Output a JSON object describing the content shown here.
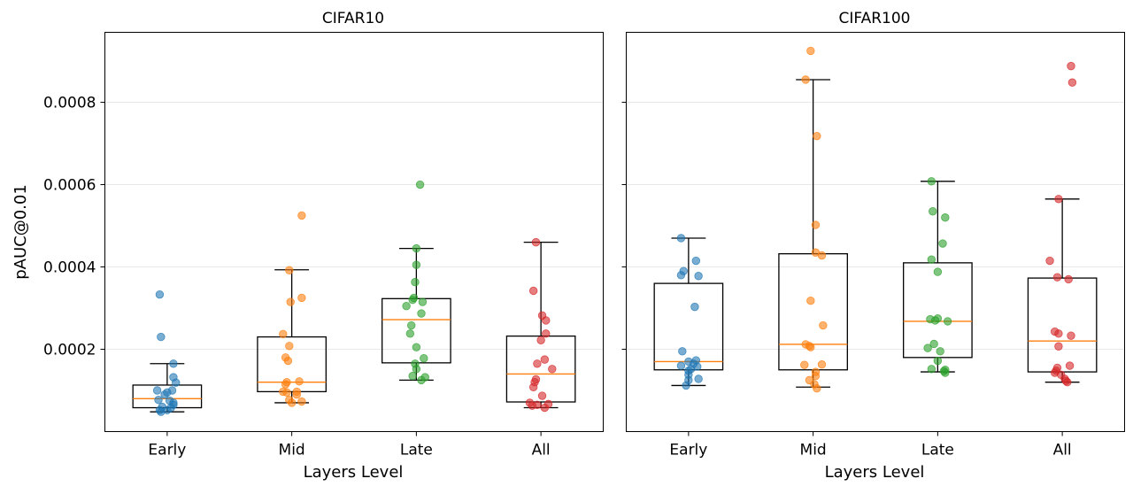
{
  "chart_data": [
    {
      "type": "box",
      "title": "CIFAR10",
      "xlabel": "Layers Level",
      "ylabel": "pAUC@0.01",
      "categories": [
        "Early",
        "Mid",
        "Late",
        "All"
      ],
      "ylim": [
        0.0,
        0.00097
      ],
      "yticks": [
        0.0002,
        0.0004,
        0.0006,
        0.0008
      ],
      "ytick_labels": [
        "0.0002",
        "0.0004",
        "0.0006",
        "0.0008"
      ],
      "grid": "horizontal",
      "colors": [
        "#1f77b4",
        "#ff7f0e",
        "#2ca02c",
        "#d62728"
      ],
      "median_color": "#ff7f0e",
      "series": [
        {
          "category": "Early",
          "box": {
            "whisker_low": 4.8e-05,
            "q1": 5.8e-05,
            "median": 8e-05,
            "q3": 0.000113,
            "whisker_high": 0.000165
          },
          "points": [
            {
              "x": -0.06,
              "y": 0.000333
            },
            {
              "x": -0.05,
              "y": 0.00023
            },
            {
              "x": 0.05,
              "y": 0.000165
            },
            {
              "x": 0.05,
              "y": 0.000132
            },
            {
              "x": 0.07,
              "y": 0.000119
            },
            {
              "x": -0.08,
              "y": 0.0001
            },
            {
              "x": 0.04,
              "y": 0.0001
            },
            {
              "x": 0.0,
              "y": 9.5e-05
            },
            {
              "x": -0.02,
              "y": 9e-05
            },
            {
              "x": -0.07,
              "y": 7.7e-05
            },
            {
              "x": 0.02,
              "y": 7.5e-05
            },
            {
              "x": 0.05,
              "y": 7e-05
            },
            {
              "x": 0.05,
              "y": 6.5e-05
            },
            {
              "x": -0.04,
              "y": 6e-05
            },
            {
              "x": 0.03,
              "y": 5.8e-05
            },
            {
              "x": -0.06,
              "y": 5.2e-05
            },
            {
              "x": 0.0,
              "y": 5.2e-05
            },
            {
              "x": -0.05,
              "y": 4.8e-05
            }
          ]
        },
        {
          "category": "Mid",
          "box": {
            "whisker_low": 7e-05,
            "q1": 9.7e-05,
            "median": 0.00012,
            "q3": 0.00023,
            "whisker_high": 0.000393
          },
          "points": [
            {
              "x": 0.08,
              "y": 0.000525
            },
            {
              "x": -0.02,
              "y": 0.000392
            },
            {
              "x": 0.08,
              "y": 0.000325
            },
            {
              "x": -0.01,
              "y": 0.000315
            },
            {
              "x": -0.07,
              "y": 0.000237
            },
            {
              "x": -0.02,
              "y": 0.000208
            },
            {
              "x": -0.05,
              "y": 0.00018
            },
            {
              "x": -0.03,
              "y": 0.000172
            },
            {
              "x": 0.06,
              "y": 0.000122
            },
            {
              "x": -0.04,
              "y": 0.00012
            },
            {
              "x": -0.05,
              "y": 0.000115
            },
            {
              "x": -0.07,
              "y": 9.7e-05
            },
            {
              "x": 0.04,
              "y": 9.7e-05
            },
            {
              "x": -0.04,
              "y": 9.5e-05
            },
            {
              "x": 0.04,
              "y": 9e-05
            },
            {
              "x": -0.02,
              "y": 7.7e-05
            },
            {
              "x": 0.08,
              "y": 7.3e-05
            },
            {
              "x": 0.0,
              "y": 7e-05
            }
          ]
        },
        {
          "category": "Late",
          "box": {
            "whisker_low": 0.000125,
            "q1": 0.000167,
            "median": 0.000272,
            "q3": 0.000323,
            "whisker_high": 0.000445
          },
          "points": [
            {
              "x": 0.03,
              "y": 0.0006
            },
            {
              "x": 0.0,
              "y": 0.000445
            },
            {
              "x": 0.0,
              "y": 0.000405
            },
            {
              "x": -0.01,
              "y": 0.000363
            },
            {
              "x": -0.02,
              "y": 0.000325
            },
            {
              "x": -0.03,
              "y": 0.00032
            },
            {
              "x": 0.05,
              "y": 0.000315
            },
            {
              "x": -0.08,
              "y": 0.000305
            },
            {
              "x": 0.04,
              "y": 0.000287
            },
            {
              "x": -0.04,
              "y": 0.000258
            },
            {
              "x": -0.05,
              "y": 0.000238
            },
            {
              "x": 0.0,
              "y": 0.000205
            },
            {
              "x": 0.06,
              "y": 0.000178
            },
            {
              "x": -0.01,
              "y": 0.000165
            },
            {
              "x": 0.0,
              "y": 0.000152
            },
            {
              "x": -0.03,
              "y": 0.000135
            },
            {
              "x": 0.07,
              "y": 0.000132
            },
            {
              "x": 0.04,
              "y": 0.000125
            }
          ]
        },
        {
          "category": "All",
          "box": {
            "whisker_low": 5.8e-05,
            "q1": 7.2e-05,
            "median": 0.00014,
            "q3": 0.000232,
            "whisker_high": 0.00046
          },
          "points": [
            {
              "x": -0.04,
              "y": 0.00046
            },
            {
              "x": -0.06,
              "y": 0.000342
            },
            {
              "x": 0.01,
              "y": 0.000282
            },
            {
              "x": 0.04,
              "y": 0.00027
            },
            {
              "x": 0.04,
              "y": 0.000238
            },
            {
              "x": 0.0,
              "y": 0.000222
            },
            {
              "x": 0.03,
              "y": 0.000175
            },
            {
              "x": -0.03,
              "y": 0.000165
            },
            {
              "x": 0.09,
              "y": 0.000152
            },
            {
              "x": -0.04,
              "y": 0.000127
            },
            {
              "x": -0.05,
              "y": 0.00012
            },
            {
              "x": -0.06,
              "y": 0.000108
            },
            {
              "x": 0.01,
              "y": 8.7e-05
            },
            {
              "x": -0.09,
              "y": 7e-05
            },
            {
              "x": 0.06,
              "y": 6.7e-05
            },
            {
              "x": -0.03,
              "y": 6.5e-05
            },
            {
              "x": -0.07,
              "y": 6.3e-05
            },
            {
              "x": 0.03,
              "y": 5.8e-05
            }
          ]
        }
      ]
    },
    {
      "type": "box",
      "title": "CIFAR100",
      "xlabel": "Layers Level",
      "ylabel": "",
      "categories": [
        "Early",
        "Mid",
        "Late",
        "All"
      ],
      "ylim": [
        0.0,
        0.00097
      ],
      "yticks": [
        0.0002,
        0.0004,
        0.0006,
        0.0008
      ],
      "ytick_labels": [],
      "grid": "horizontal",
      "colors": [
        "#1f77b4",
        "#ff7f0e",
        "#2ca02c",
        "#d62728"
      ],
      "median_color": "#ff7f0e",
      "series": [
        {
          "category": "Early",
          "box": {
            "whisker_low": 0.000112,
            "q1": 0.00015,
            "median": 0.00017,
            "q3": 0.00036,
            "whisker_high": 0.00047
          },
          "points": [
            {
              "x": -0.06,
              "y": 0.00047
            },
            {
              "x": 0.06,
              "y": 0.000415
            },
            {
              "x": -0.04,
              "y": 0.00039
            },
            {
              "x": -0.06,
              "y": 0.00038
            },
            {
              "x": 0.08,
              "y": 0.000378
            },
            {
              "x": 0.05,
              "y": 0.000303
            },
            {
              "x": -0.05,
              "y": 0.000195
            },
            {
              "x": 0.06,
              "y": 0.000173
            },
            {
              "x": 0.0,
              "y": 0.00017
            },
            {
              "x": 0.04,
              "y": 0.000165
            },
            {
              "x": -0.06,
              "y": 0.00016
            },
            {
              "x": 0.07,
              "y": 0.000158
            },
            {
              "x": 0.02,
              "y": 0.000152
            },
            {
              "x": 0.0,
              "y": 0.000148
            },
            {
              "x": 0.0,
              "y": 0.000138
            },
            {
              "x": 0.08,
              "y": 0.000128
            },
            {
              "x": 0.0,
              "y": 0.000125
            },
            {
              "x": -0.02,
              "y": 0.000112
            }
          ]
        },
        {
          "category": "Mid",
          "box": {
            "whisker_low": 0.000108,
            "q1": 0.00015,
            "median": 0.000212,
            "q3": 0.000432,
            "whisker_high": 0.000855
          },
          "points": [
            {
              "x": -0.02,
              "y": 0.000925
            },
            {
              "x": -0.06,
              "y": 0.000855
            },
            {
              "x": 0.03,
              "y": 0.000718
            },
            {
              "x": 0.02,
              "y": 0.000502
            },
            {
              "x": 0.02,
              "y": 0.000435
            },
            {
              "x": 0.07,
              "y": 0.000428
            },
            {
              "x": -0.02,
              "y": 0.000318
            },
            {
              "x": 0.08,
              "y": 0.000258
            },
            {
              "x": -0.06,
              "y": 0.000212
            },
            {
              "x": -0.03,
              "y": 0.000208
            },
            {
              "x": -0.02,
              "y": 0.000205
            },
            {
              "x": 0.07,
              "y": 0.000163
            },
            {
              "x": -0.07,
              "y": 0.000162
            },
            {
              "x": 0.02,
              "y": 0.000145
            },
            {
              "x": 0.02,
              "y": 0.000135
            },
            {
              "x": -0.03,
              "y": 0.000125
            },
            {
              "x": 0.01,
              "y": 0.000115
            },
            {
              "x": 0.03,
              "y": 0.000105
            }
          ]
        },
        {
          "category": "Late",
          "box": {
            "whisker_low": 0.000145,
            "q1": 0.00018,
            "median": 0.000268,
            "q3": 0.00041,
            "whisker_high": 0.000608
          },
          "points": [
            {
              "x": -0.05,
              "y": 0.000608
            },
            {
              "x": -0.04,
              "y": 0.000535
            },
            {
              "x": 0.06,
              "y": 0.00052
            },
            {
              "x": 0.04,
              "y": 0.000457
            },
            {
              "x": -0.05,
              "y": 0.000418
            },
            {
              "x": 0.0,
              "y": 0.000388
            },
            {
              "x": 0.0,
              "y": 0.000275
            },
            {
              "x": -0.06,
              "y": 0.000273
            },
            {
              "x": -0.02,
              "y": 0.00027
            },
            {
              "x": 0.08,
              "y": 0.000268
            },
            {
              "x": -0.03,
              "y": 0.000213
            },
            {
              "x": -0.08,
              "y": 0.000203
            },
            {
              "x": 0.02,
              "y": 0.000195
            },
            {
              "x": 0.0,
              "y": 0.000172
            },
            {
              "x": -0.05,
              "y": 0.000152
            },
            {
              "x": 0.06,
              "y": 0.00015
            },
            {
              "x": 0.05,
              "y": 0.000147
            },
            {
              "x": 0.06,
              "y": 0.000143
            }
          ]
        },
        {
          "category": "All",
          "box": {
            "whisker_low": 0.00012,
            "q1": 0.000145,
            "median": 0.00022,
            "q3": 0.000373,
            "whisker_high": 0.000565
          },
          "points": [
            {
              "x": 0.07,
              "y": 0.000888
            },
            {
              "x": 0.08,
              "y": 0.000848
            },
            {
              "x": -0.03,
              "y": 0.000565
            },
            {
              "x": -0.1,
              "y": 0.000415
            },
            {
              "x": -0.04,
              "y": 0.000375
            },
            {
              "x": 0.05,
              "y": 0.00037
            },
            {
              "x": -0.06,
              "y": 0.000243
            },
            {
              "x": -0.03,
              "y": 0.000238
            },
            {
              "x": 0.07,
              "y": 0.000233
            },
            {
              "x": -0.03,
              "y": 0.000207
            },
            {
              "x": 0.06,
              "y": 0.00016
            },
            {
              "x": -0.04,
              "y": 0.000155
            },
            {
              "x": -0.05,
              "y": 0.000148
            },
            {
              "x": -0.06,
              "y": 0.000143
            },
            {
              "x": -0.01,
              "y": 0.000138
            },
            {
              "x": 0.02,
              "y": 0.000128
            },
            {
              "x": 0.03,
              "y": 0.000123
            },
            {
              "x": 0.04,
              "y": 0.00012
            }
          ]
        }
      ]
    }
  ]
}
